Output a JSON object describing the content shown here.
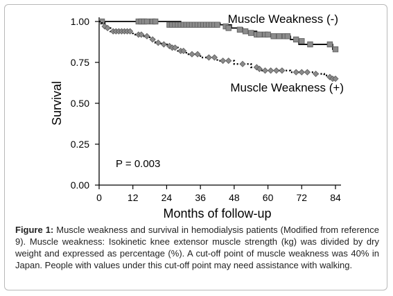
{
  "figure": {
    "caption_label": "Figure 1:",
    "caption_text": " Muscle weakness and survival in hemodialysis patients (Modified from reference 9). Muscle weakness: Isokinetic knee extensor muscle strength (kg) was divided by dry weight and expressed as percentage (%). A cut-off point of muscle weakness was 40% in Japan. People with values under this cut-off point may need assistance with walking."
  },
  "chart_data": {
    "type": "line",
    "title": "",
    "xlabel": "Months of follow-up",
    "ylabel": "Survival",
    "xlim": [
      0,
      84
    ],
    "ylim": [
      0,
      1
    ],
    "xticks": [
      0,
      12,
      24,
      36,
      48,
      60,
      72,
      84
    ],
    "yticks": [
      0.0,
      0.25,
      0.5,
      0.75,
      1.0
    ],
    "xtick_labels": [
      "0",
      "12",
      "24",
      "36",
      "48",
      "60",
      "72",
      "84"
    ],
    "ytick_labels": [
      "0.00",
      "0.25",
      "0.50",
      "0.75",
      "1.00"
    ],
    "grid": false,
    "annotations": {
      "p_value": "P = 0.003"
    },
    "series": [
      {
        "name": "Muscle Weakness (-)",
        "style": "solid",
        "marker": "square",
        "color": "#000000",
        "marker_color": "#8c8c8c",
        "steps": [
          [
            0,
            1.0
          ],
          [
            29,
            0.99
          ],
          [
            43,
            0.98
          ],
          [
            47,
            0.96
          ],
          [
            51,
            0.94
          ],
          [
            56,
            0.92
          ],
          [
            62,
            0.91
          ],
          [
            68,
            0.89
          ],
          [
            71,
            0.86
          ],
          [
            78,
            0.86
          ],
          [
            83,
            0.83
          ],
          [
            84,
            0.83
          ]
        ],
        "censored": [
          [
            1,
            1.0
          ],
          [
            14,
            1.0
          ],
          [
            15,
            1.0
          ],
          [
            16,
            1.0
          ],
          [
            17,
            1.0
          ],
          [
            19,
            1.0
          ],
          [
            20,
            1.0
          ],
          [
            25,
            0.98
          ],
          [
            26,
            0.98
          ],
          [
            27,
            0.98
          ],
          [
            28,
            0.98
          ],
          [
            29,
            0.98
          ],
          [
            30,
            0.98
          ],
          [
            31,
            0.98
          ],
          [
            32,
            0.98
          ],
          [
            33,
            0.98
          ],
          [
            34,
            0.98
          ],
          [
            35,
            0.98
          ],
          [
            36,
            0.98
          ],
          [
            37,
            0.98
          ],
          [
            38,
            0.98
          ],
          [
            39,
            0.98
          ],
          [
            40,
            0.98
          ],
          [
            41,
            0.98
          ],
          [
            42,
            0.98
          ],
          [
            45,
            0.97
          ],
          [
            46,
            0.96
          ],
          [
            50,
            0.95
          ],
          [
            52,
            0.94
          ],
          [
            54,
            0.93
          ],
          [
            56,
            0.92
          ],
          [
            57,
            0.92
          ],
          [
            59,
            0.92
          ],
          [
            60,
            0.92
          ],
          [
            62,
            0.91
          ],
          [
            64,
            0.91
          ],
          [
            66,
            0.91
          ],
          [
            67,
            0.91
          ],
          [
            70,
            0.89
          ],
          [
            72,
            0.88
          ],
          [
            75,
            0.86
          ],
          [
            82,
            0.86
          ],
          [
            84,
            0.83
          ]
        ]
      },
      {
        "name": "Muscle Weakness (+)",
        "style": "dotted",
        "marker": "diamond",
        "color": "#000000",
        "marker_color": "#8c8c8c",
        "steps": [
          [
            0,
            1.0
          ],
          [
            1,
            0.99
          ],
          [
            2,
            0.97
          ],
          [
            3,
            0.96
          ],
          [
            4,
            0.94
          ],
          [
            12,
            0.92
          ],
          [
            16,
            0.91
          ],
          [
            18,
            0.89
          ],
          [
            20,
            0.87
          ],
          [
            22,
            0.86
          ],
          [
            25,
            0.84
          ],
          [
            28,
            0.82
          ],
          [
            31,
            0.8
          ],
          [
            36,
            0.78
          ],
          [
            42,
            0.76
          ],
          [
            48,
            0.74
          ],
          [
            54,
            0.72
          ],
          [
            57,
            0.7
          ],
          [
            68,
            0.69
          ],
          [
            77,
            0.68
          ],
          [
            80,
            0.67
          ],
          [
            82,
            0.66
          ],
          [
            84,
            0.65
          ]
        ],
        "censored": [
          [
            2,
            0.97
          ],
          [
            3,
            0.96
          ],
          [
            5,
            0.94
          ],
          [
            6,
            0.94
          ],
          [
            7,
            0.94
          ],
          [
            8,
            0.94
          ],
          [
            9,
            0.94
          ],
          [
            10,
            0.94
          ],
          [
            11,
            0.94
          ],
          [
            14,
            0.92
          ],
          [
            15,
            0.92
          ],
          [
            17,
            0.91
          ],
          [
            19,
            0.89
          ],
          [
            21,
            0.87
          ],
          [
            23,
            0.86
          ],
          [
            25,
            0.85
          ],
          [
            26,
            0.84
          ],
          [
            27,
            0.84
          ],
          [
            29,
            0.82
          ],
          [
            30,
            0.82
          ],
          [
            33,
            0.8
          ],
          [
            35,
            0.8
          ],
          [
            39,
            0.78
          ],
          [
            41,
            0.78
          ],
          [
            44,
            0.76
          ],
          [
            46,
            0.76
          ],
          [
            51,
            0.74
          ],
          [
            56,
            0.72
          ],
          [
            57,
            0.71
          ],
          [
            59,
            0.7
          ],
          [
            61,
            0.7
          ],
          [
            63,
            0.7
          ],
          [
            65,
            0.7
          ],
          [
            70,
            0.69
          ],
          [
            72,
            0.69
          ],
          [
            74,
            0.69
          ],
          [
            77,
            0.68
          ],
          [
            82,
            0.66
          ],
          [
            83,
            0.65
          ],
          [
            84,
            0.65
          ]
        ]
      }
    ]
  }
}
